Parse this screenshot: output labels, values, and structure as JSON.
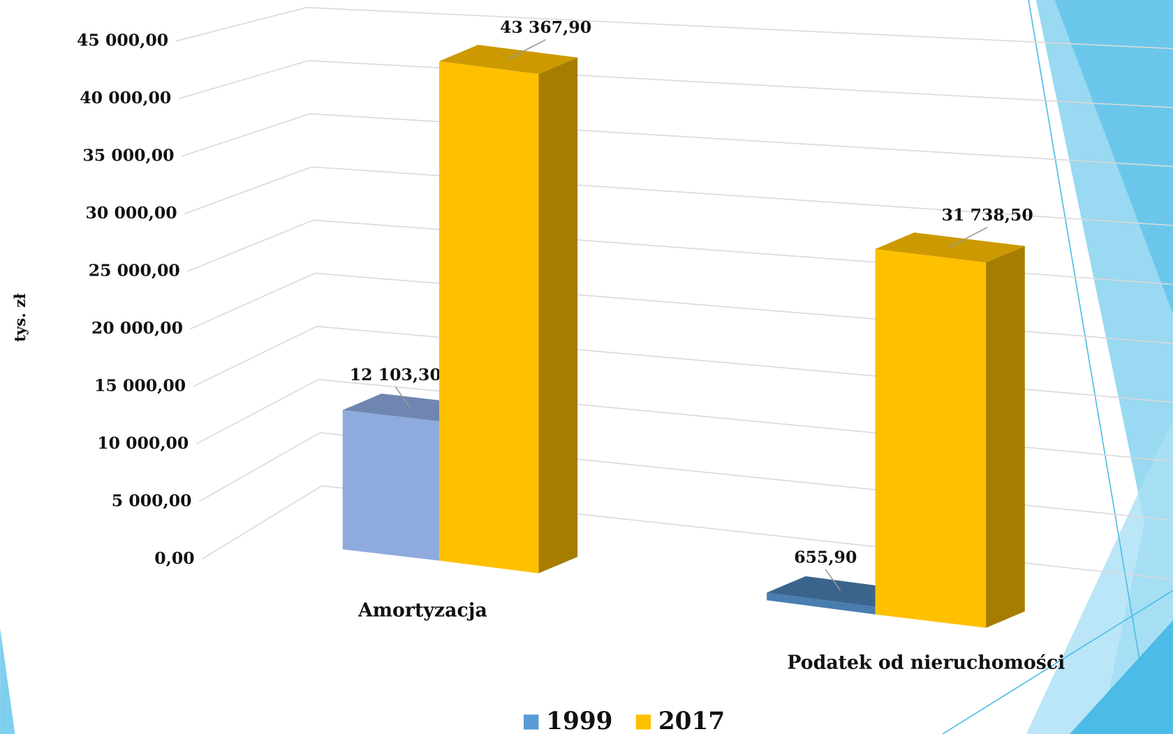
{
  "chart_data": {
    "type": "bar3d",
    "y_label": "tys. zł",
    "categories": [
      "Amortyzacja",
      "Podatek od nieruchomości"
    ],
    "series": [
      {
        "name": "1999",
        "color": "#5b9bd5",
        "values": [
          12103.3,
          655.9
        ],
        "value_labels": [
          "12 103,30",
          "655,90"
        ]
      },
      {
        "name": "2017",
        "color": "#ffc000",
        "values": [
          43367.9,
          31738.5
        ],
        "value_labels": [
          "43 367,90",
          "31 738,50"
        ]
      }
    ],
    "ylim": [
      0,
      45000
    ],
    "yticks": [
      {
        "value": 0,
        "label": "0,00"
      },
      {
        "value": 5000,
        "label": "5 000,00"
      },
      {
        "value": 10000,
        "label": "10 000,00"
      },
      {
        "value": 15000,
        "label": "15 000,00"
      },
      {
        "value": 20000,
        "label": "20 000,00"
      },
      {
        "value": 25000,
        "label": "25 000,00"
      },
      {
        "value": 30000,
        "label": "30 000,00"
      },
      {
        "value": 35000,
        "label": "35 000,00"
      },
      {
        "value": 40000,
        "label": "40 000,00"
      },
      {
        "value": 45000,
        "label": "45 000,00"
      }
    ],
    "grid": true,
    "legend": "bottom"
  }
}
